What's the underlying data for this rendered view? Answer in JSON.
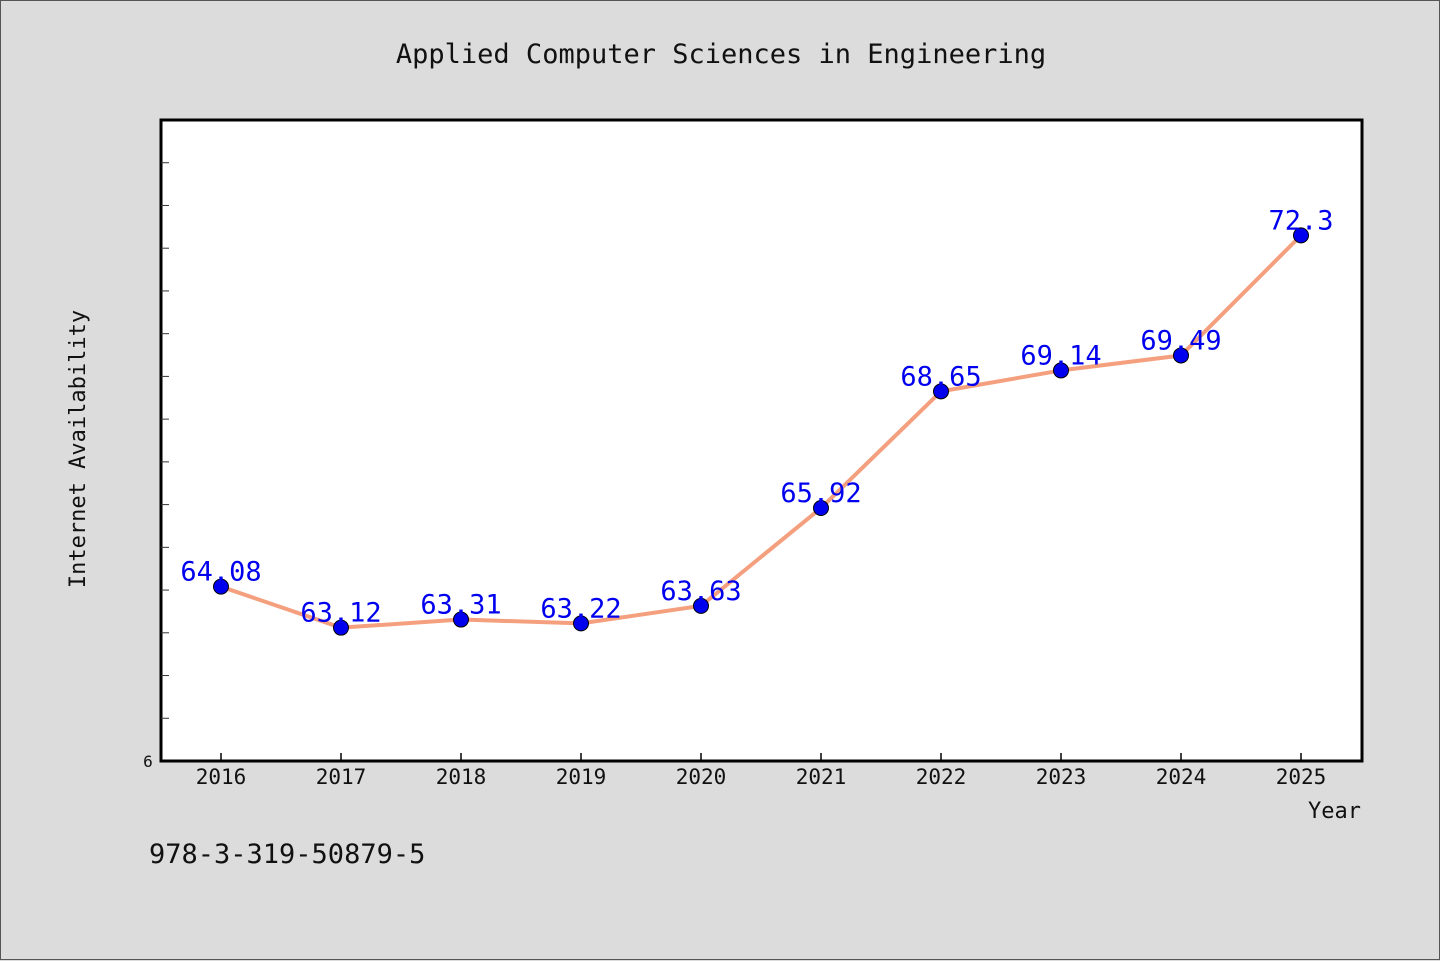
{
  "chart_data": {
    "type": "line",
    "title": "Applied Computer Sciences in Engineering",
    "xlabel": "Year",
    "ylabel": "Internet Availability",
    "x": [
      "2016",
      "2017",
      "2018",
      "2019",
      "2020",
      "2021",
      "2022",
      "2023",
      "2024",
      "2025"
    ],
    "series": [
      {
        "values": [
          64.08,
          63.12,
          63.31,
          63.22,
          63.63,
          65.92,
          68.65,
          69.14,
          69.49,
          72.3
        ]
      }
    ],
    "data_labels": [
      "64.08",
      "63.12",
      "63.31",
      "63.22",
      "63.63",
      "65.92",
      "68.65",
      "69.14",
      "69.49",
      "72.3"
    ],
    "y_tick_labels": [
      "6"
    ],
    "ylim": [
      60,
      75
    ],
    "grid": false,
    "line_color": "#f4a07f",
    "marker_color": "#0000ee",
    "label_color": "#0000ee",
    "plot_background": "#ffffff",
    "figure_background": "#dcdcdc"
  },
  "footer": {
    "isbn": "978-3-319-50879-5"
  }
}
